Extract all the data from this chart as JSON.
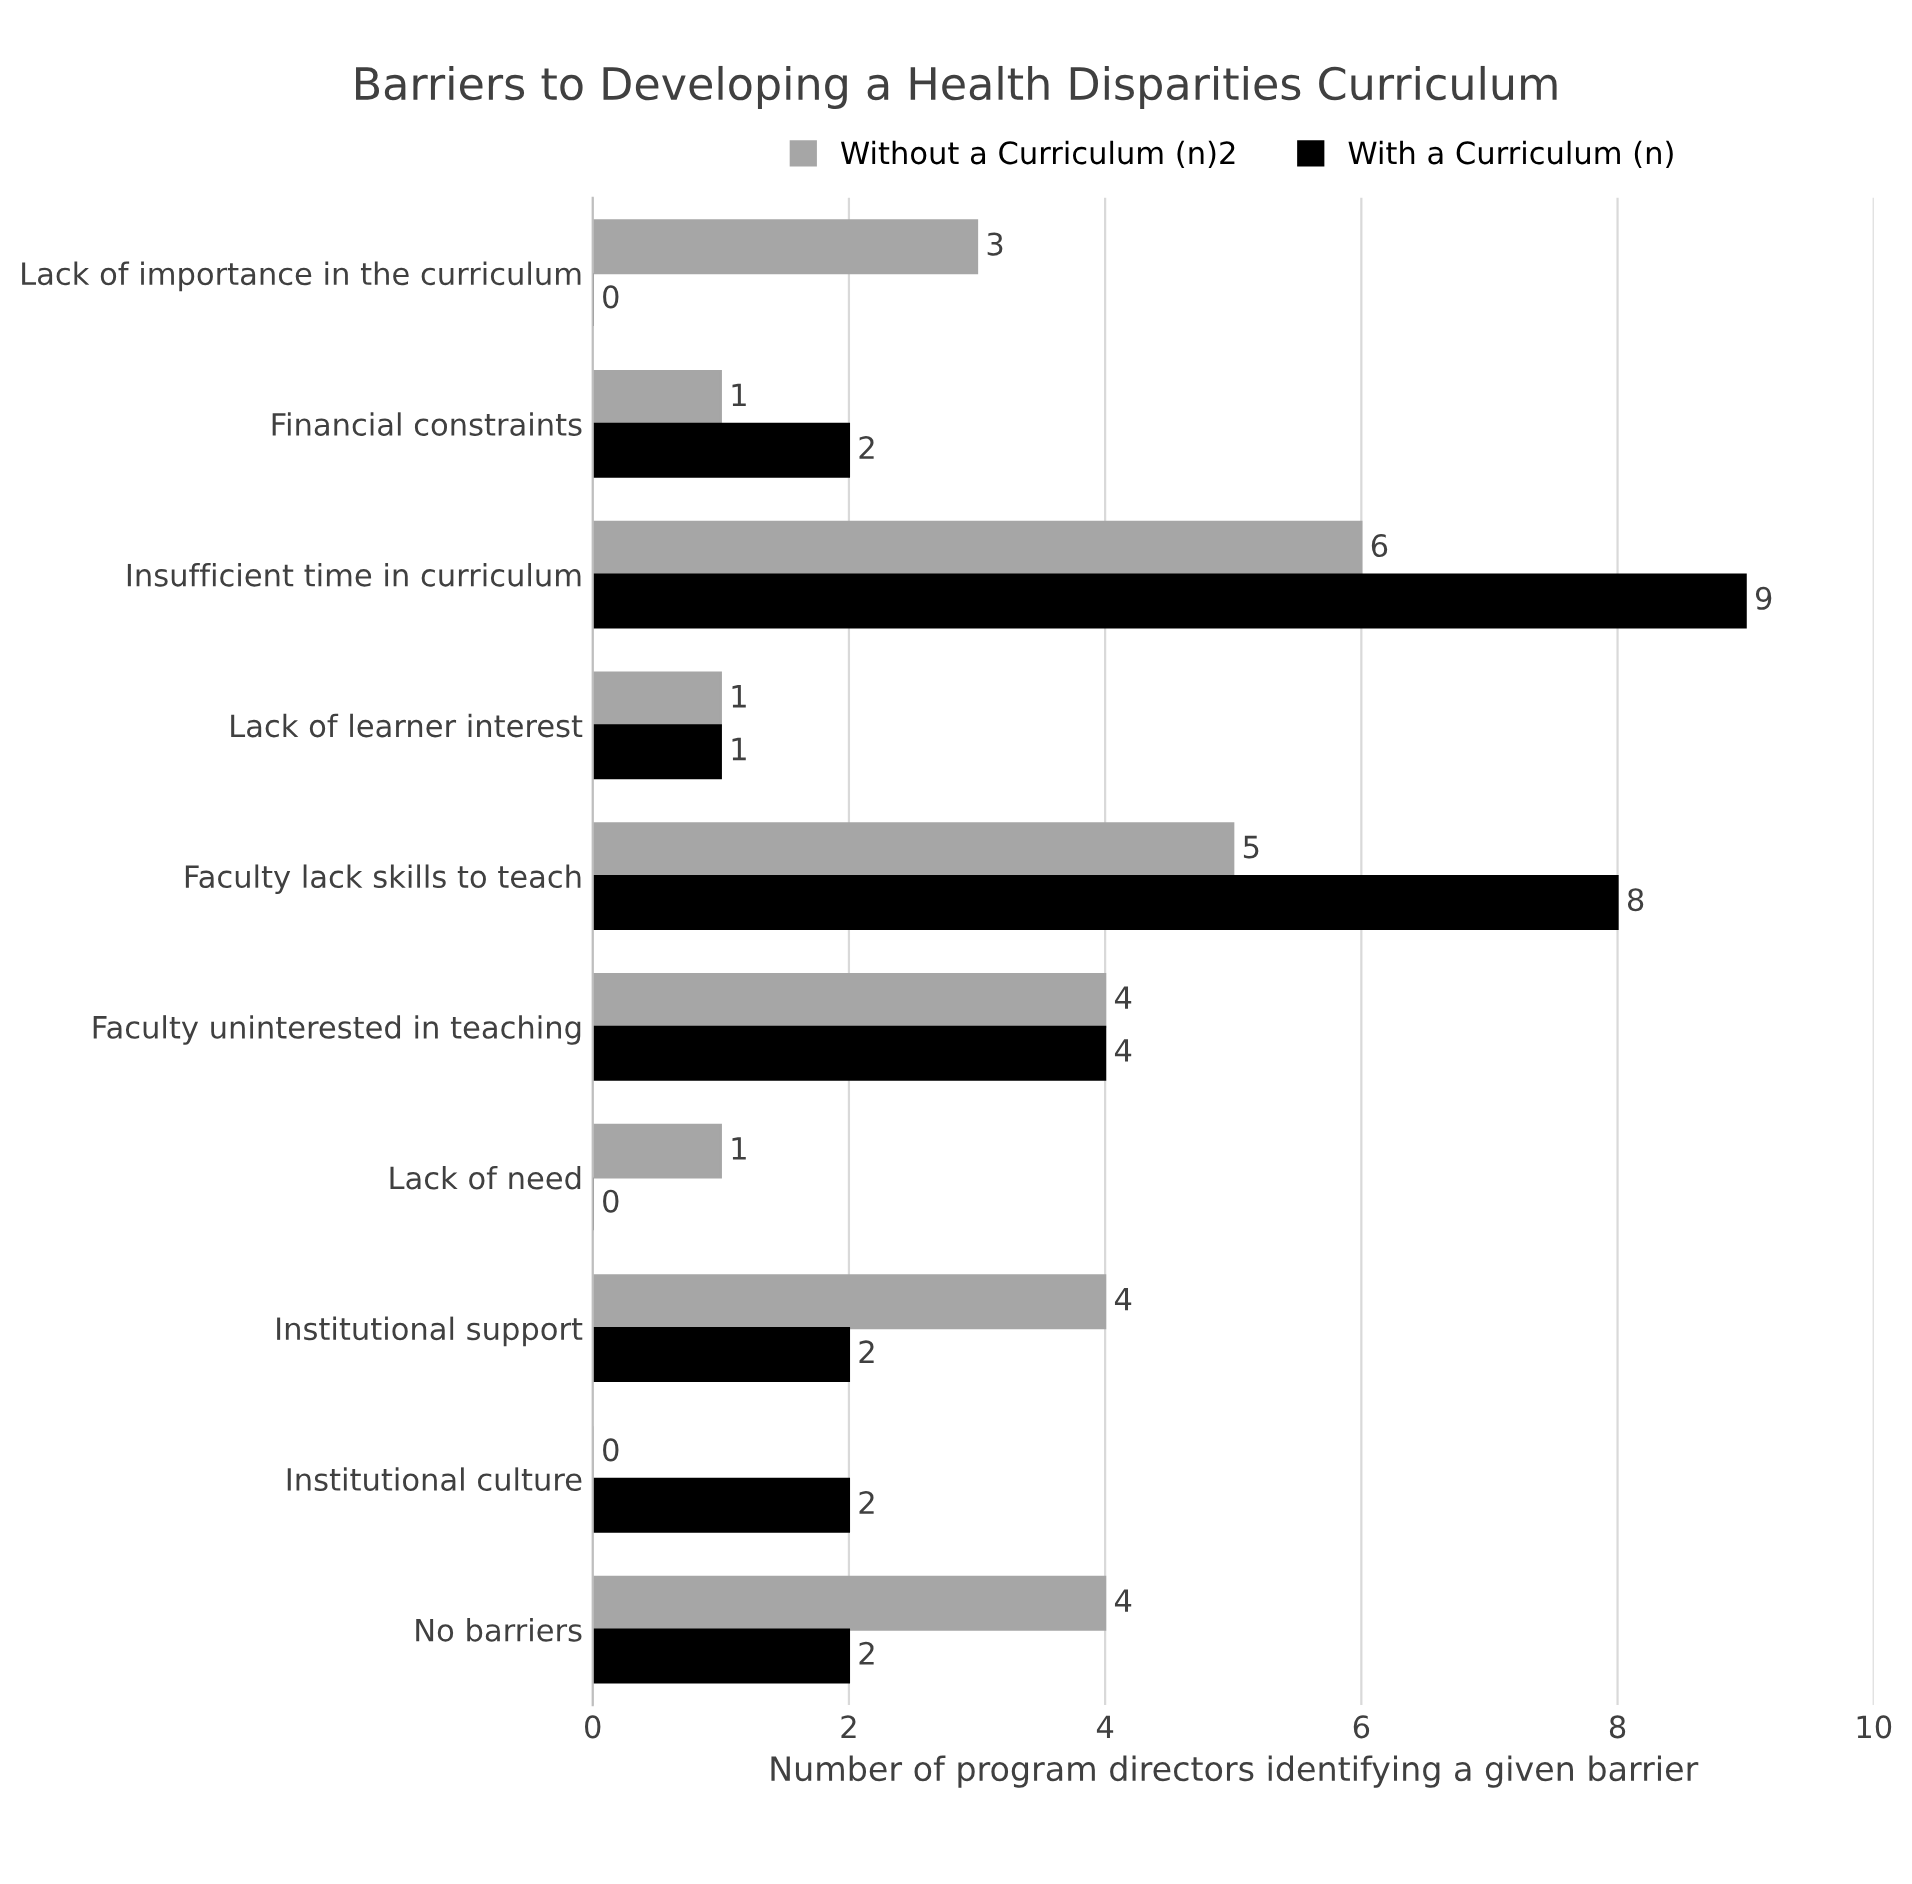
{
  "chart_data": {
    "type": "bar",
    "orientation": "horizontal",
    "title": "Barriers to Developing a Health Disparities Curriculum",
    "xlabel": "Number of program directors identifying a given barrier",
    "categories": [
      "Lack of importance in the curriculum",
      "Financial constraints",
      "Insufficient time in curriculum",
      "Lack of learner interest",
      "Faculty lack skills to teach",
      "Faculty uninterested in teaching",
      "Lack of need",
      "Institutional support",
      "Institutional culture",
      "No barriers"
    ],
    "series": [
      {
        "name": "Without a Curriculum (n)2",
        "color": "#a6a6a6",
        "values": [
          3,
          1,
          6,
          1,
          5,
          4,
          1,
          4,
          0,
          4
        ]
      },
      {
        "name": "With a Curriculum (n)",
        "color": "#000000",
        "values": [
          0,
          2,
          9,
          1,
          8,
          4,
          0,
          2,
          2,
          2
        ]
      }
    ],
    "xlim": [
      0,
      10
    ],
    "xticks": [
      0,
      2,
      4,
      6,
      8,
      10
    ],
    "grid": "x",
    "legend": "top",
    "data_labels": true
  }
}
